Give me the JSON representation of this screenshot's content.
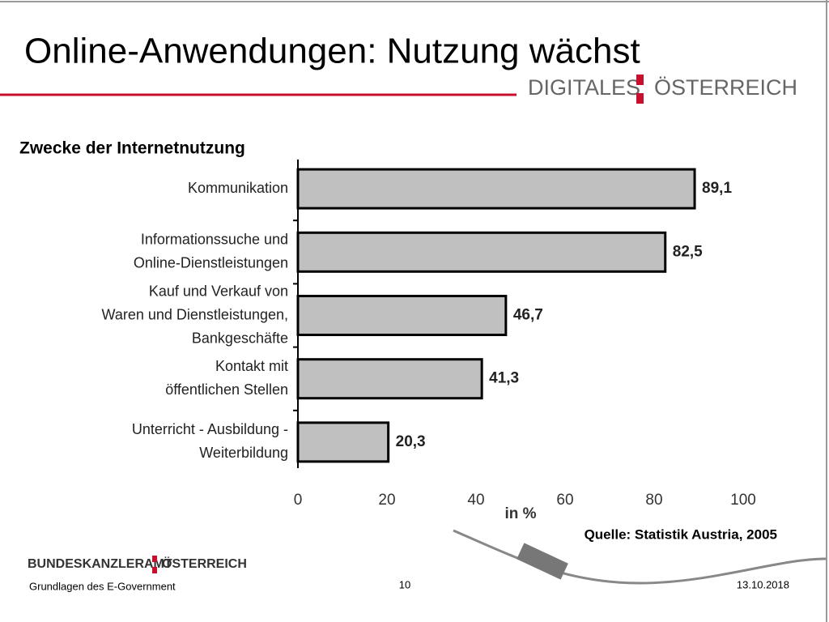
{
  "header": {
    "title": "Online-Anwendungen: Nutzung wächst",
    "logo_left": "DIGITALES",
    "logo_right": "ÖSTERREICH"
  },
  "chart_data": {
    "type": "bar",
    "orientation": "horizontal",
    "subtitle": "Zwecke der Internetnutzung",
    "categories": [
      [
        "Kommunikation"
      ],
      [
        "Informationssuche und",
        "Online-Dienstleistungen"
      ],
      [
        "Kauf und Verkauf von",
        "Waren und Dienstleistungen,",
        "Bankgeschäfte"
      ],
      [
        "Kontakt mit",
        "öffentlichen Stellen"
      ],
      [
        "Unterricht - Ausbildung -",
        "Weiterbildung"
      ]
    ],
    "values": [
      89.1,
      82.5,
      46.7,
      41.3,
      20.3
    ],
    "value_labels": [
      "89,1",
      "82,5",
      "46,7",
      "41,3",
      "20,3"
    ],
    "color": "#c0c0c0",
    "xlim": [
      0,
      100
    ],
    "xticks": [
      0,
      20,
      40,
      60,
      80,
      100
    ],
    "xlabel": "in %",
    "source": "Quelle: Statistik Austria, 2005"
  },
  "footer": {
    "organization": "BUNDESKANZLERAMT",
    "organization_country": "ÖSTERREICH",
    "left": "Grundlagen des E-Government",
    "page": "10",
    "date": "13.10.2018"
  }
}
